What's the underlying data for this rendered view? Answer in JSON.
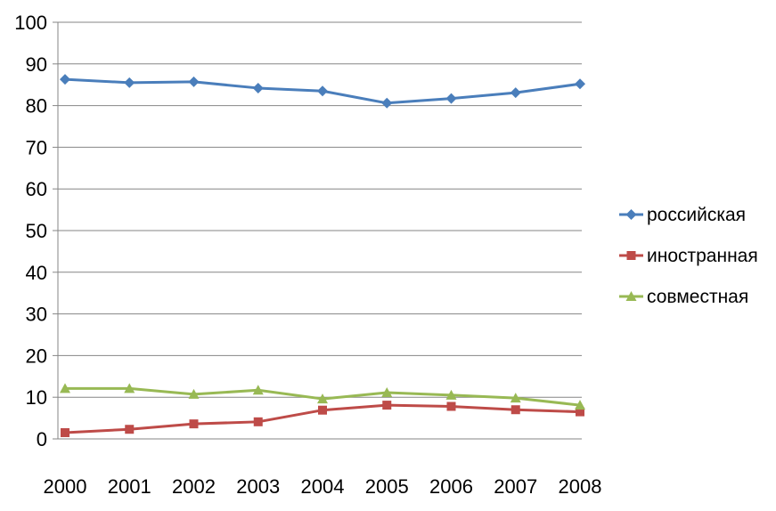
{
  "chart_data": {
    "type": "line",
    "title": "",
    "xlabel": "",
    "ylabel": "",
    "x": [
      "2000",
      "2001",
      "2002",
      "2003",
      "2004",
      "2005",
      "2006",
      "2007",
      "2008"
    ],
    "ylim": [
      0,
      100
    ],
    "yticks": [
      "0",
      "10",
      "20",
      "30",
      "40",
      "50",
      "60",
      "70",
      "80",
      "90",
      "100"
    ],
    "grid": "horizontal",
    "legend_position": "right",
    "series": [
      {
        "name": "российская",
        "color": "#4a7ebb",
        "marker": "diamond",
        "values": [
          86.3,
          85.5,
          85.7,
          84.2,
          83.5,
          80.6,
          81.7,
          83.1,
          85.2
        ]
      },
      {
        "name": "иностранная",
        "color": "#be4b48",
        "marker": "square",
        "values": [
          1.5,
          2.3,
          3.6,
          4.1,
          6.9,
          8.1,
          7.8,
          7.0,
          6.5
        ]
      },
      {
        "name": "совместная",
        "color": "#98b954",
        "marker": "triangle",
        "values": [
          12.1,
          12.1,
          10.7,
          11.7,
          9.6,
          11.1,
          10.5,
          9.8,
          8.1
        ]
      }
    ]
  }
}
